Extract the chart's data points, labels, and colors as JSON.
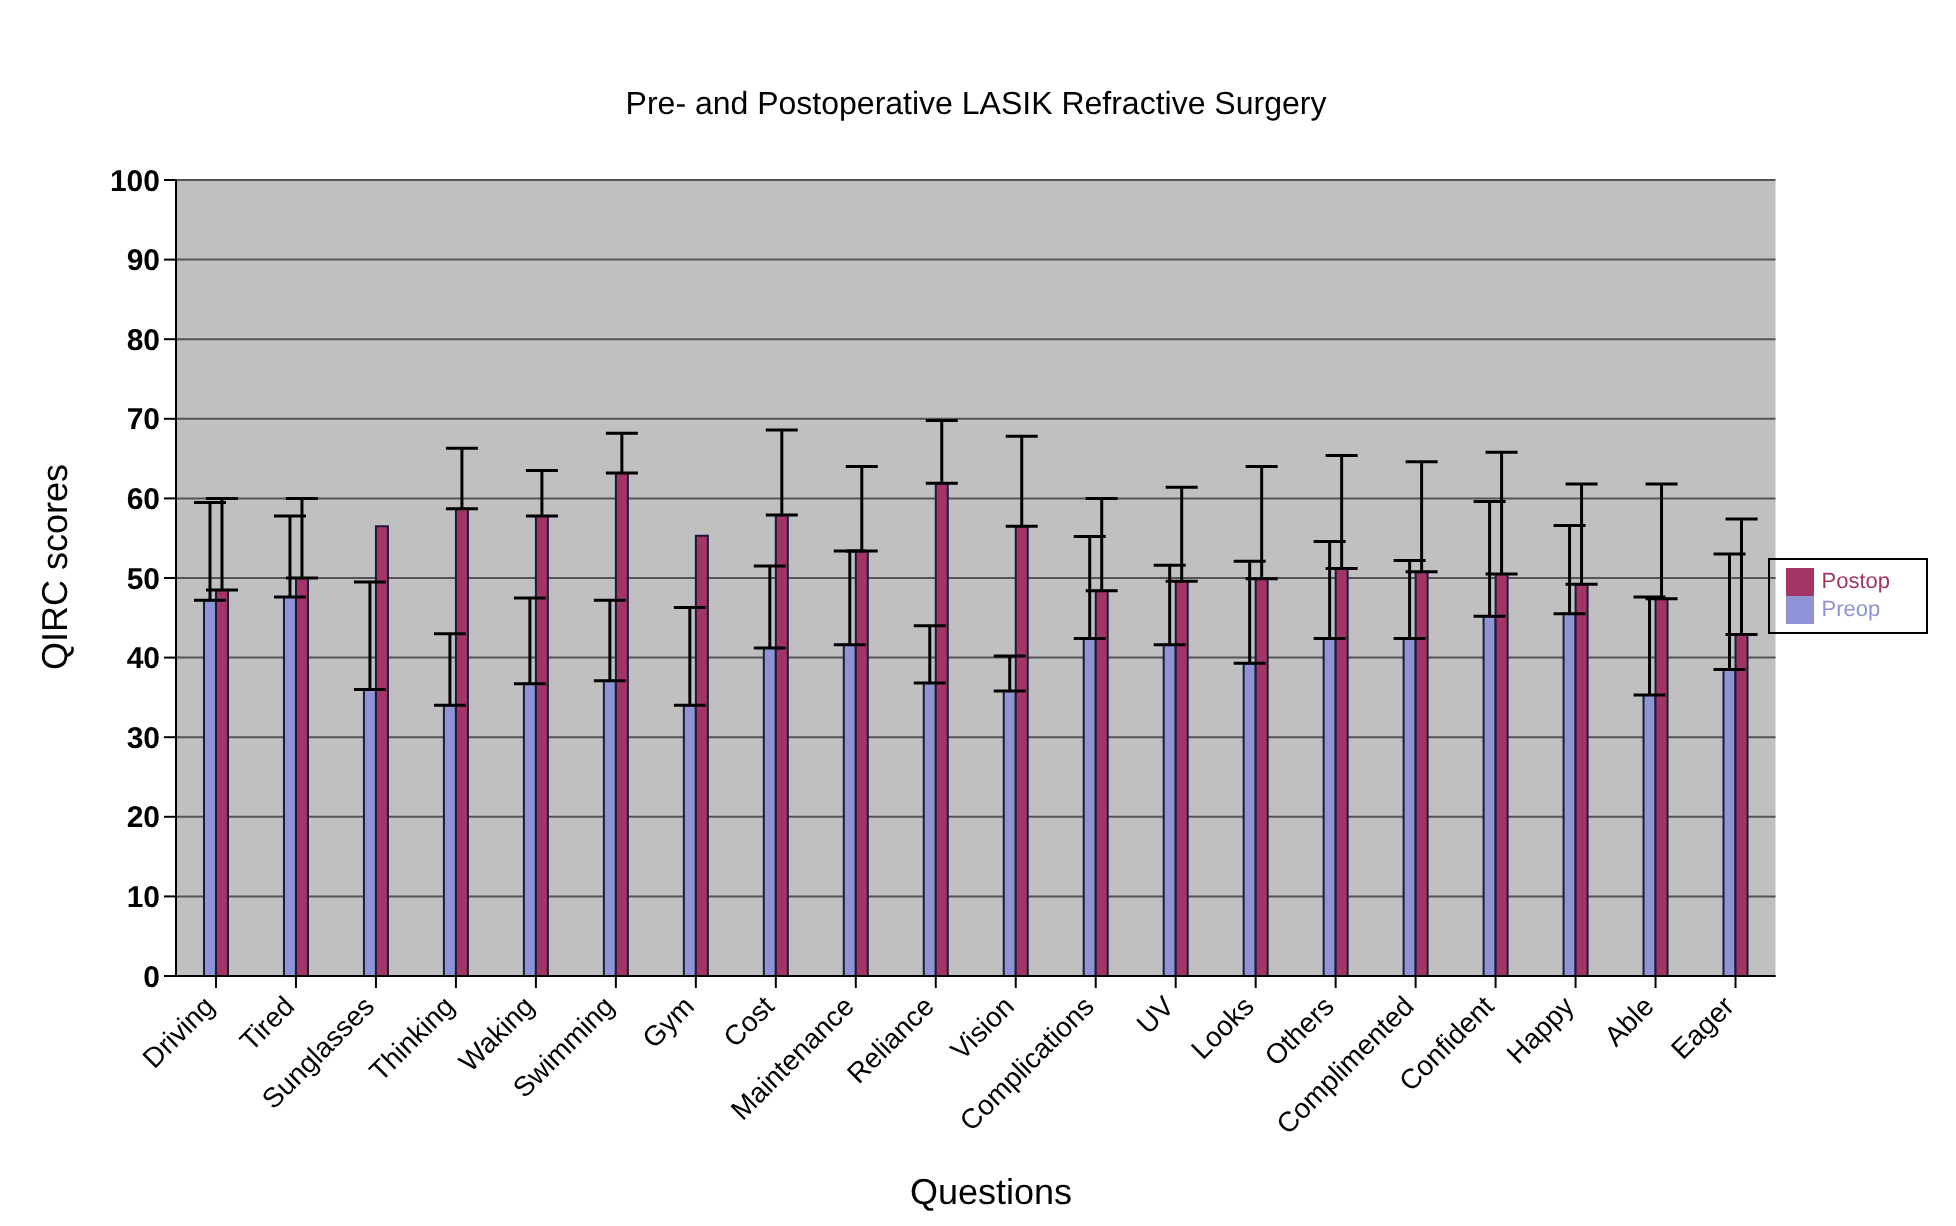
{
  "chart_data": {
    "type": "bar",
    "title": "Pre- and Postoperative LASIK Refractive Surgery",
    "xlabel": "Questions",
    "ylabel": "QIRC scores",
    "categories": [
      "Driving",
      "Tired",
      "Sunglasses",
      "Thinking",
      "Waking",
      "Swimming",
      "Gym",
      "Cost",
      "Maintenance",
      "Reliance",
      "Vision",
      "Complications",
      "UV",
      "Looks",
      "Others",
      "Complimented",
      "Confident",
      "Happy",
      "Able",
      "Eager"
    ],
    "series": [
      {
        "name": "Preop",
        "color": "#8e94d4",
        "values": [
          47.2,
          47.6,
          36,
          34,
          36.7,
          37.1,
          34,
          41.2,
          41.6,
          36.8,
          35.8,
          42.4,
          41.6,
          39.3,
          42.4,
          42.4,
          45.2,
          45.5,
          35.3,
          38.5
        ],
        "errors": [
          [
            47.2,
            59.5
          ],
          [
            47.6,
            57.8
          ],
          [
            36,
            49.5
          ],
          [
            34,
            43
          ],
          [
            36.7,
            47.5
          ],
          [
            37.1,
            47.2
          ],
          [
            34,
            46.3
          ],
          [
            41.2,
            51.5
          ],
          [
            41.6,
            53.4
          ],
          [
            36.8,
            44
          ],
          [
            35.8,
            40.2
          ],
          [
            42.4,
            55.2
          ],
          [
            41.6,
            51.6
          ],
          [
            39.3,
            52.1
          ],
          [
            42.4,
            54.6
          ],
          [
            42.4,
            52.2
          ],
          [
            45.2,
            59.6
          ],
          [
            45.5,
            56.6
          ],
          [
            35.3,
            47.6
          ],
          [
            38.5,
            53
          ]
        ]
      },
      {
        "name": "Postop",
        "color": "#a33566",
        "values": [
          48.5,
          50,
          56.5,
          58.7,
          57.8,
          63.2,
          55.3,
          57.9,
          53.4,
          61.9,
          56.5,
          48.4,
          49.6,
          49.9,
          51.2,
          50.8,
          50.5,
          49.2,
          47.4,
          42.9
        ],
        "errors": [
          [
            48.5,
            60
          ],
          [
            50,
            60
          ],
          null,
          [
            58.7,
            66.3
          ],
          [
            57.8,
            63.5
          ],
          [
            63.2,
            68.2
          ],
          null,
          [
            57.9,
            68.6
          ],
          [
            53.4,
            64
          ],
          [
            61.9,
            69.8
          ],
          [
            56.5,
            67.8
          ],
          [
            48.4,
            60
          ],
          [
            49.6,
            61.4
          ],
          [
            49.9,
            64
          ],
          [
            51.2,
            65.4
          ],
          [
            50.8,
            64.6
          ],
          [
            50.5,
            65.8
          ],
          [
            49.2,
            61.8
          ],
          [
            47.4,
            61.8
          ],
          [
            42.9,
            57.4
          ]
        ]
      }
    ],
    "ylim": [
      0,
      100
    ],
    "yticks": [
      0,
      10,
      20,
      30,
      40,
      50,
      60,
      70,
      80,
      90,
      100
    ],
    "grid": "y",
    "legend": "right"
  }
}
